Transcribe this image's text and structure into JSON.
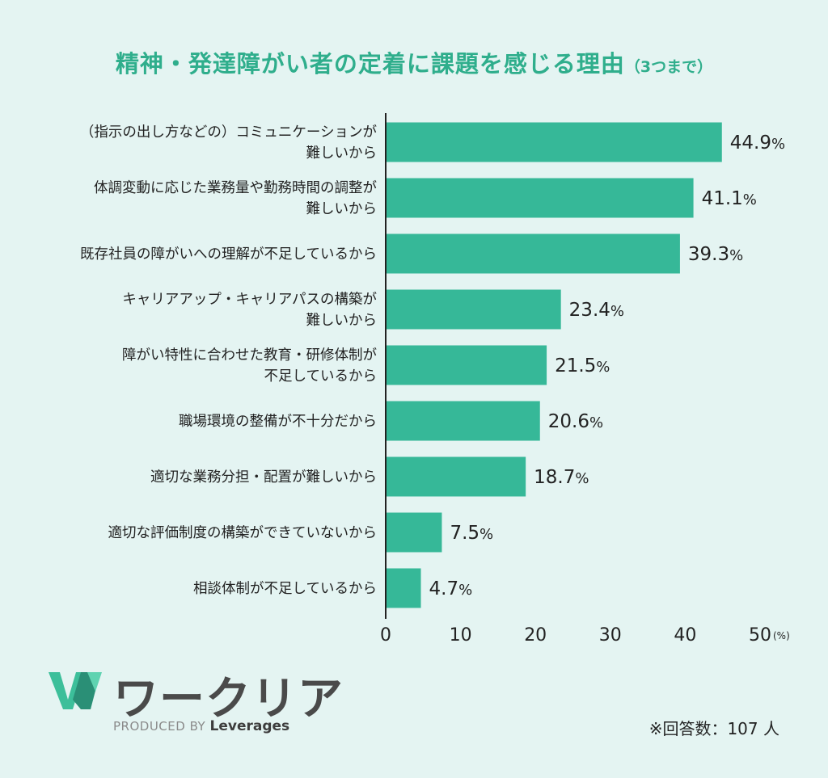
{
  "header": {
    "title": "精神・発達障がい者の定着に課題を感じる理由",
    "subtitle": "（3つまで）"
  },
  "chart_data": {
    "type": "bar",
    "orientation": "horizontal",
    "categories": [
      [
        "（指示の出し方などの）コミュニケーションが",
        "難しいから"
      ],
      [
        "体調変動に応じた業務量や勤務時間の調整が",
        "難しいから"
      ],
      [
        "既存社員の障がいへの理解が不足しているから"
      ],
      [
        "キャリアアップ・キャリアパスの構築が",
        "難しいから"
      ],
      [
        "障がい特性に合わせた教育・研修体制が",
        "不足しているから"
      ],
      [
        "職場環境の整備が不十分だから"
      ],
      [
        "適切な業務分担・配置が難しいから"
      ],
      [
        "適切な評価制度の構築ができていないから"
      ],
      [
        "相談体制が不足しているから"
      ]
    ],
    "values": [
      44.9,
      41.1,
      39.3,
      23.4,
      21.5,
      20.6,
      18.7,
      7.5,
      4.7
    ],
    "value_suffix": "%",
    "xlim": [
      0,
      50
    ],
    "xticks": [
      "0",
      "10",
      "20",
      "30",
      "40",
      "50"
    ],
    "unit_label": "(%)",
    "bar_color": "#36b898",
    "grid": false
  },
  "brand": {
    "logo_icon": "w-logo-icon",
    "name": "ワークリア",
    "produced_by": "PRODUCED BY",
    "company": "Leverages"
  },
  "footnote": "※回答数：107 人",
  "colors": {
    "background": "#e4f4f2",
    "title": "#2fae8c",
    "bar": "#36b898"
  }
}
